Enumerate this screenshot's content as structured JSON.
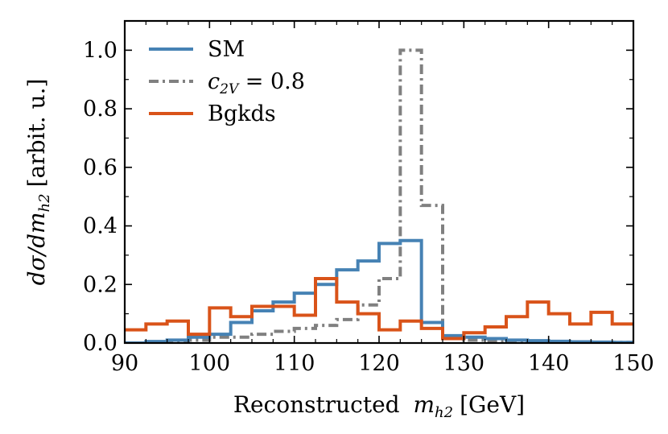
{
  "chart_data": {
    "type": "histogram-step",
    "xlabel": "Reconstructed m_h2 [GeV]",
    "xlabel_parts": {
      "text": "Reconstructed",
      "math": "m",
      "sub": "h2",
      "unit": "[GeV]"
    },
    "ylabel": "dσ/dm_h2 [arbit. u.]",
    "ylabel_parts": {
      "math": "dσ/dm",
      "sub": "h2",
      "unit": "[arbit. u.]"
    },
    "xlim": [
      90,
      150
    ],
    "ylim": [
      0,
      1.1
    ],
    "xticks": [
      90,
      100,
      110,
      120,
      130,
      140,
      150
    ],
    "xtick_labels": [
      "90",
      "100",
      "110",
      "120",
      "130",
      "140",
      "150"
    ],
    "yticks": [
      0.0,
      0.2,
      0.4,
      0.6,
      0.8,
      1.0
    ],
    "ytick_labels": [
      "0.0",
      "0.2",
      "0.4",
      "0.6",
      "0.8",
      "1.0"
    ],
    "legend_position": "top-left",
    "bin_edges": [
      90,
      92.5,
      95,
      97.5,
      100,
      102.5,
      105,
      107.5,
      110,
      112.5,
      115,
      117.5,
      120,
      122.5,
      125,
      127.5,
      130,
      132.5,
      135,
      137.5,
      140,
      142.5,
      145,
      147.5,
      150
    ],
    "series": [
      {
        "name": "SM",
        "legend": "SM",
        "color": "#4682b4",
        "style": "solid",
        "values": [
          0.0,
          0.005,
          0.01,
          0.02,
          0.03,
          0.07,
          0.11,
          0.14,
          0.17,
          0.2,
          0.25,
          0.28,
          0.34,
          0.35,
          0.07,
          0.025,
          0.02,
          0.015,
          0.01,
          0.008,
          0.006,
          0.004,
          0.003,
          0.002
        ]
      },
      {
        "name": "c2V",
        "legend_math": "c",
        "legend_sub": "2V",
        "legend_rest": " = 0.8",
        "color": "#808080",
        "style": "dashdot",
        "values": [
          0.0,
          0.0,
          0.005,
          0.01,
          0.02,
          0.02,
          0.03,
          0.04,
          0.05,
          0.06,
          0.08,
          0.13,
          0.22,
          1.0,
          0.47,
          0.02,
          0.01,
          0.008,
          0.006,
          0.005,
          0.004,
          0.003,
          0.002,
          0.002
        ]
      },
      {
        "name": "Bgkds",
        "legend": "Bgkds",
        "color": "#d95319",
        "style": "solid",
        "values": [
          0.045,
          0.065,
          0.075,
          0.03,
          0.12,
          0.09,
          0.125,
          0.125,
          0.095,
          0.22,
          0.14,
          0.1,
          0.045,
          0.075,
          0.05,
          0.015,
          0.035,
          0.055,
          0.09,
          0.14,
          0.1,
          0.065,
          0.105,
          0.065
        ]
      }
    ]
  }
}
